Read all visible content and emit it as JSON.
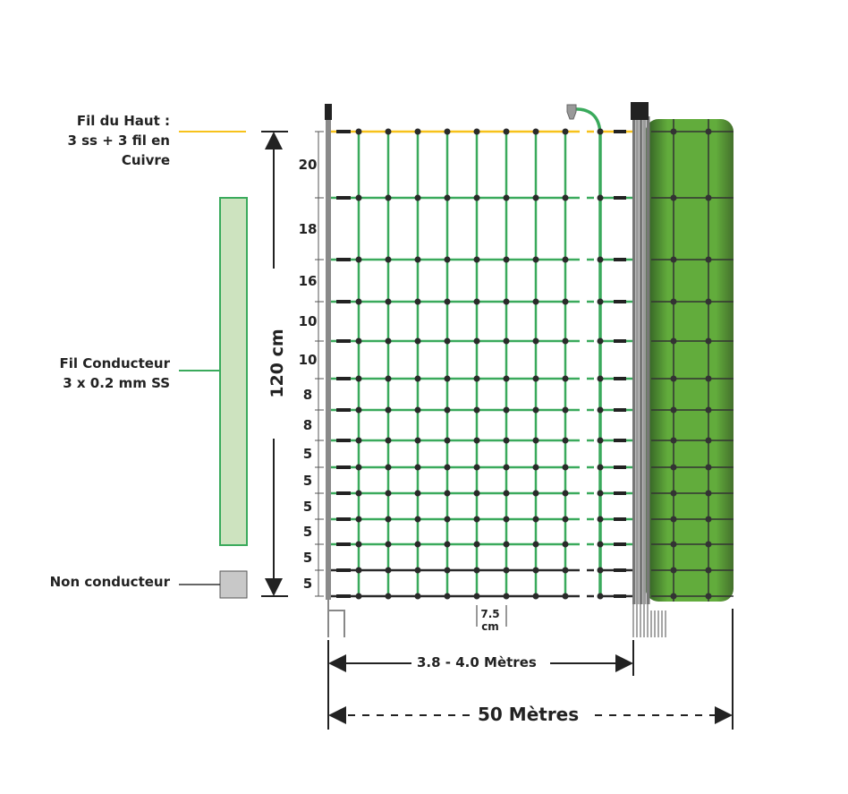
{
  "labels": {
    "top_wire_line1": "Fil du Haut :",
    "top_wire_line2": "3 ss + 3 fil en Cuivre",
    "conductor_line1": "Fil Conducteur",
    "conductor_line2": "3 x 0.2 mm SS",
    "non_conductor": "Non conducteur",
    "height": "120 cm",
    "mesh_width_value": "7.5",
    "mesh_width_unit": "cm",
    "post_spacing": "3.8 - 4.0 Mètres",
    "roll_length": "50 Mètres"
  },
  "wire_spacings_cm": [
    "20",
    "18",
    "16",
    "10",
    "10",
    "8",
    "8",
    "5",
    "5",
    "5",
    "5",
    "5",
    "5"
  ],
  "colors": {
    "top_wire": "#f7c21b",
    "conductor": "#3aaa5c",
    "non_conductor": "#2a2a2a",
    "roll": "#62ac3c",
    "legend_conductor_fill": "#cde3bf",
    "legend_non_conductor_fill": "#c8c8c8"
  }
}
